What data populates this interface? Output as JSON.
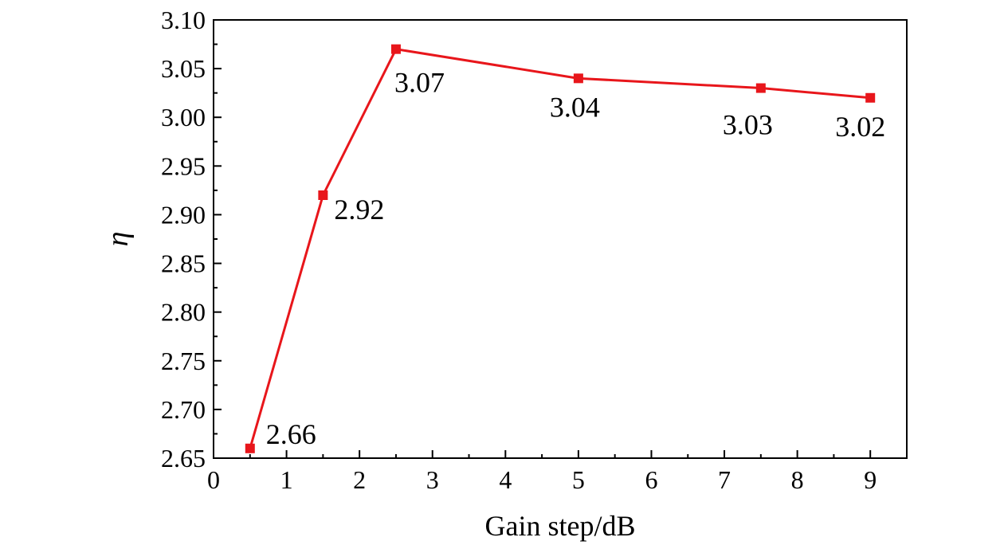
{
  "chart_data": {
    "type": "line",
    "title": "",
    "xlabel": "Gain step/dB",
    "ylabel": "η",
    "xlim": [
      0,
      9.5
    ],
    "ylim": [
      2.65,
      3.1
    ],
    "xticks": [
      0,
      1,
      2,
      3,
      4,
      5,
      6,
      7,
      8,
      9
    ],
    "xtick_labels": [
      "0",
      "1",
      "2",
      "3",
      "4",
      "5",
      "6",
      "7",
      "8",
      "9"
    ],
    "yticks": [
      2.65,
      2.7,
      2.75,
      2.8,
      2.85,
      2.9,
      2.95,
      3.0,
      3.05,
      3.1
    ],
    "ytick_labels": [
      "2.65",
      "2.70",
      "2.75",
      "2.80",
      "2.85",
      "2.90",
      "2.95",
      "3.00",
      "3.05",
      "3.10"
    ],
    "grid": false,
    "legend": "none",
    "series": [
      {
        "color": "#e8161b",
        "marker": "square",
        "x": [
          0.5,
          1.5,
          2.5,
          5,
          7.5,
          9
        ],
        "y": [
          2.66,
          2.92,
          3.07,
          3.04,
          3.03,
          3.02
        ],
        "data_labels": [
          "2.66",
          "2.92",
          "3.07",
          "3.04",
          "3.03",
          "3.02"
        ]
      }
    ]
  }
}
